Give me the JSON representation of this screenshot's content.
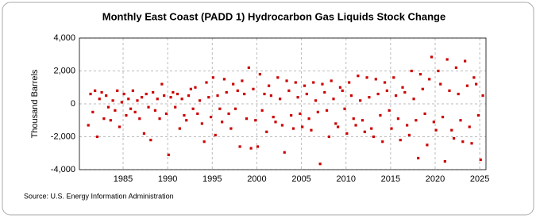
{
  "chart_data": {
    "type": "scatter",
    "title": "Monthly East Coast (PADD 1) Hydrocarbon Gas Liquids Stock Change",
    "y_label": "Thousand Barrels",
    "source": "Source: U.S. Energy Information Administration",
    "color": "#cc0000",
    "grid": true,
    "xlim": [
      1980.1,
      2025.7
    ],
    "ylim": [
      -4000,
      4000
    ],
    "xticks": [
      1985,
      1990,
      1995,
      2000,
      2005,
      2010,
      2015,
      2020,
      2025
    ],
    "yticks": [
      {
        "value": -4000,
        "label": "-4,000"
      },
      {
        "value": -2000,
        "label": "-2,000"
      },
      0,
      {
        "value": 2000,
        "label": "2,000"
      },
      {
        "value": 4000,
        "label": "4,000"
      }
    ],
    "x": [
      1981.1,
      1981.35,
      1981.6,
      1981.85,
      1982.1,
      1982.35,
      1982.6,
      1982.85,
      1983.1,
      1983.35,
      1983.6,
      1983.85,
      1984.1,
      1984.35,
      1984.6,
      1984.85,
      1985.1,
      1985.35,
      1985.6,
      1985.85,
      1986.1,
      1986.35,
      1986.6,
      1986.85,
      1987.1,
      1987.35,
      1987.6,
      1987.85,
      1988.1,
      1988.35,
      1988.6,
      1988.85,
      1989.1,
      1989.35,
      1989.6,
      1989.85,
      1990.1,
      1990.35,
      1990.6,
      1990.85,
      1991.1,
      1991.35,
      1991.6,
      1991.85,
      1992.1,
      1992.35,
      1992.6,
      1992.85,
      1993.1,
      1993.35,
      1993.6,
      1993.85,
      1994.1,
      1994.35,
      1994.6,
      1994.85,
      1995.1,
      1995.35,
      1995.6,
      1995.85,
      1996.1,
      1996.35,
      1996.6,
      1996.85,
      1997.1,
      1997.35,
      1997.6,
      1997.85,
      1998.1,
      1998.35,
      1998.6,
      1998.85,
      1999.1,
      1999.35,
      1999.6,
      1999.85,
      2000.1,
      2000.35,
      2000.6,
      2000.85,
      2001.1,
      2001.35,
      2001.6,
      2001.85,
      2002.1,
      2002.35,
      2002.6,
      2002.85,
      2003.1,
      2003.35,
      2003.6,
      2003.85,
      2004.1,
      2004.35,
      2004.6,
      2004.85,
      2005.1,
      2005.35,
      2005.6,
      2005.85,
      2006.1,
      2006.35,
      2006.6,
      2006.85,
      2007.1,
      2007.35,
      2007.6,
      2007.85,
      2008.1,
      2008.35,
      2008.6,
      2008.85,
      2009.1,
      2009.35,
      2009.6,
      2009.85,
      2010.1,
      2010.35,
      2010.6,
      2010.85,
      2011.1,
      2011.35,
      2011.6,
      2011.85,
      2012.1,
      2012.35,
      2012.6,
      2012.85,
      2013.1,
      2013.35,
      2013.6,
      2013.85,
      2014.1,
      2014.35,
      2014.6,
      2014.85,
      2015.1,
      2015.35,
      2015.6,
      2015.85,
      2016.1,
      2016.35,
      2016.6,
      2016.85,
      2017.1,
      2017.35,
      2017.6,
      2017.85,
      2018.1,
      2018.35,
      2018.6,
      2018.85,
      2019.1,
      2019.35,
      2019.6,
      2019.85,
      2020.1,
      2020.35,
      2020.6,
      2020.85,
      2021.1,
      2021.35,
      2021.6,
      2021.85,
      2022.1,
      2022.35,
      2022.6,
      2022.85,
      2023.1,
      2023.35,
      2023.6,
      2023.85,
      2024.1,
      2024.35,
      2024.6,
      2024.85,
      2025.1,
      2025.35
    ],
    "values": [
      -1300,
      600,
      -500,
      800,
      -2000,
      300,
      700,
      -900,
      500,
      -200,
      -1000,
      200,
      -400,
      800,
      -1400,
      100,
      600,
      -700,
      300,
      -300,
      800,
      -500,
      200,
      -900,
      400,
      -1800,
      600,
      -200,
      -2200,
      700,
      -400,
      300,
      -900,
      1200,
      500,
      -600,
      -3100,
      400,
      700,
      -200,
      600,
      -1500,
      300,
      -700,
      -1000,
      500,
      900,
      -300,
      1000,
      -600,
      200,
      -1200,
      -2300,
      1300,
      400,
      -800,
      1600,
      -1900,
      500,
      -300,
      -1100,
      1500,
      700,
      -600,
      -1500,
      1200,
      -300,
      800,
      -2600,
      1400,
      600,
      -900,
      2200,
      -2700,
      900,
      -1000,
      -2600,
      1800,
      -400,
      600,
      -1700,
      1100,
      500,
      -800,
      -1100,
      1600,
      300,
      -1300,
      -2950,
      1400,
      800,
      -700,
      -1500,
      1300,
      400,
      -600,
      -1400,
      1100,
      600,
      -900,
      -1600,
      1300,
      200,
      -500,
      -3650,
      1200,
      700,
      -400,
      -2000,
      1400,
      300,
      -1200,
      -1400,
      1000,
      800,
      -300,
      -1800,
      1300,
      500,
      -900,
      -1300,
      1700,
      200,
      -1000,
      -1700,
      1600,
      400,
      -1500,
      -2000,
      1500,
      600,
      -700,
      -2300,
      1300,
      800,
      -400,
      -1500,
      1600,
      500,
      -900,
      -2200,
      1000,
      700,
      -1300,
      -1900,
      2000,
      300,
      -1000,
      -3300,
      1800,
      900,
      -600,
      -2500,
      1500,
      2850,
      -1100,
      -1600,
      2000,
      1200,
      -800,
      -3500,
      2700,
      800,
      -1600,
      -2100,
      2200,
      600,
      -1000,
      -2300,
      2600,
      1100,
      -1400,
      -2400,
      1600,
      1200,
      -700,
      -3400,
      500
    ]
  }
}
